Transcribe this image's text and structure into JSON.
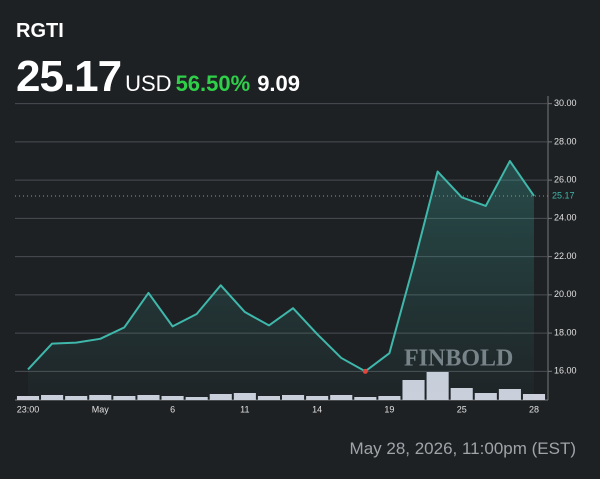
{
  "header": {
    "ticker": "RGTI",
    "price": 25.17,
    "currency": "USD",
    "change_percent": {
      "value": 56.5,
      "label": "56.50%"
    },
    "change": 9.09
  },
  "chart_data": {
    "type": "line",
    "x": [
      "23:00",
      null,
      null,
      "May",
      null,
      null,
      "6",
      null,
      null,
      "11",
      null,
      null,
      "14",
      null,
      null,
      "19",
      null,
      null,
      "25",
      null,
      null,
      "28"
    ],
    "values": [
      16.1,
      17.45,
      17.5,
      17.7,
      18.3,
      20.1,
      18.35,
      19.0,
      20.5,
      19.1,
      18.4,
      19.3,
      17.95,
      16.7,
      16.0,
      16.95,
      21.55,
      26.45,
      25.1,
      24.65,
      27.0,
      25.17
    ],
    "color": "#3fb8ab",
    "low_marker_color": "#e0463c",
    "volume": [
      4,
      5,
      4,
      5,
      4,
      5,
      4,
      3,
      6,
      7,
      4,
      5,
      4,
      5,
      3,
      4,
      20,
      28,
      12,
      7,
      11,
      6
    ],
    "volume_lim": [
      0,
      30
    ],
    "volume_color": "#cdd0dc",
    "ylim": [
      14.5,
      30.4
    ],
    "yticks": [
      {
        "value": 16,
        "label": "16.00"
      },
      {
        "value": 18,
        "label": "18.00"
      },
      {
        "value": 20,
        "label": "20.00"
      },
      {
        "value": 22,
        "label": "22.00"
      },
      {
        "value": 24,
        "label": "24.00"
      },
      {
        "value": 26,
        "label": "26.00"
      },
      {
        "value": 28,
        "label": "28.00"
      },
      {
        "value": 30,
        "label": "30.00"
      }
    ],
    "grid": true,
    "watermark": "FINBOLD"
  },
  "footer": {
    "timestamp": "May 28, 2026, 11:00pm (EST)"
  }
}
